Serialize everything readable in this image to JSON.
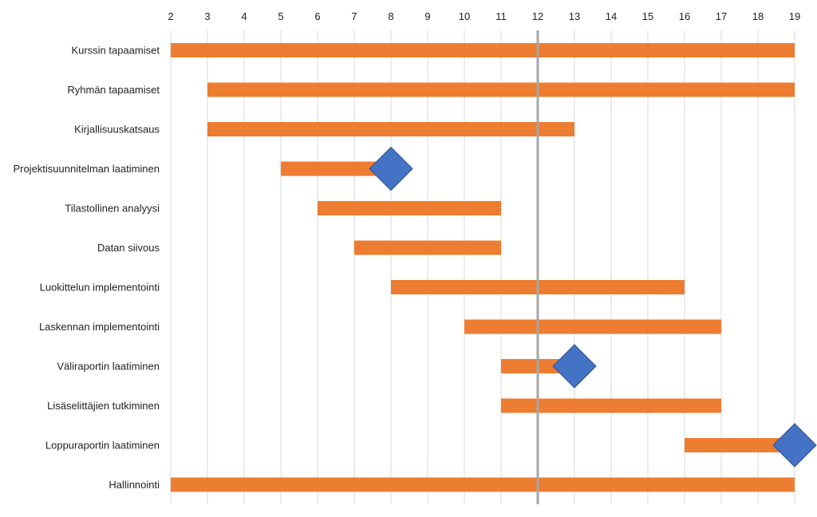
{
  "chart_data": {
    "type": "gantt",
    "title": "",
    "xlabel": "",
    "ylabel": "",
    "xlim": [
      2,
      19
    ],
    "x_ticks": [
      2,
      3,
      4,
      5,
      6,
      7,
      8,
      9,
      10,
      11,
      12,
      13,
      14,
      15,
      16,
      17,
      18,
      19
    ],
    "x_axis_position": "top",
    "grid": true,
    "current_marker": 12,
    "bar_color": "#ED7D31",
    "milestone_color": "#4472C4",
    "marker_color": "#A6A6A6",
    "tasks": [
      {
        "name": "Kurssin tapaamiset",
        "start": 2,
        "end": 19,
        "milestone": null
      },
      {
        "name": "Ryhmän tapaamiset",
        "start": 3,
        "end": 19,
        "milestone": null
      },
      {
        "name": "Kirjallisuuskatsaus",
        "start": 3,
        "end": 13,
        "milestone": null
      },
      {
        "name": "Projektisuunnitelman laatiminen",
        "start": 5,
        "end": 8,
        "milestone": 8
      },
      {
        "name": "Tilastollinen analyysi",
        "start": 6,
        "end": 11,
        "milestone": null
      },
      {
        "name": "Datan siivous",
        "start": 7,
        "end": 11,
        "milestone": null
      },
      {
        "name": "Luokittelun implementointi",
        "start": 8,
        "end": 16,
        "milestone": null
      },
      {
        "name": "Laskennan implementointi",
        "start": 10,
        "end": 17,
        "milestone": null
      },
      {
        "name": "Väliraportin laatiminen",
        "start": 11,
        "end": 13,
        "milestone": 13
      },
      {
        "name": "Lisäselittäjien tutkiminen",
        "start": 11,
        "end": 17,
        "milestone": null
      },
      {
        "name": "Loppuraportin laatiminen",
        "start": 16,
        "end": 19,
        "milestone": 19
      },
      {
        "name": "Hallinnointi",
        "start": 2,
        "end": 19,
        "milestone": null
      }
    ]
  }
}
